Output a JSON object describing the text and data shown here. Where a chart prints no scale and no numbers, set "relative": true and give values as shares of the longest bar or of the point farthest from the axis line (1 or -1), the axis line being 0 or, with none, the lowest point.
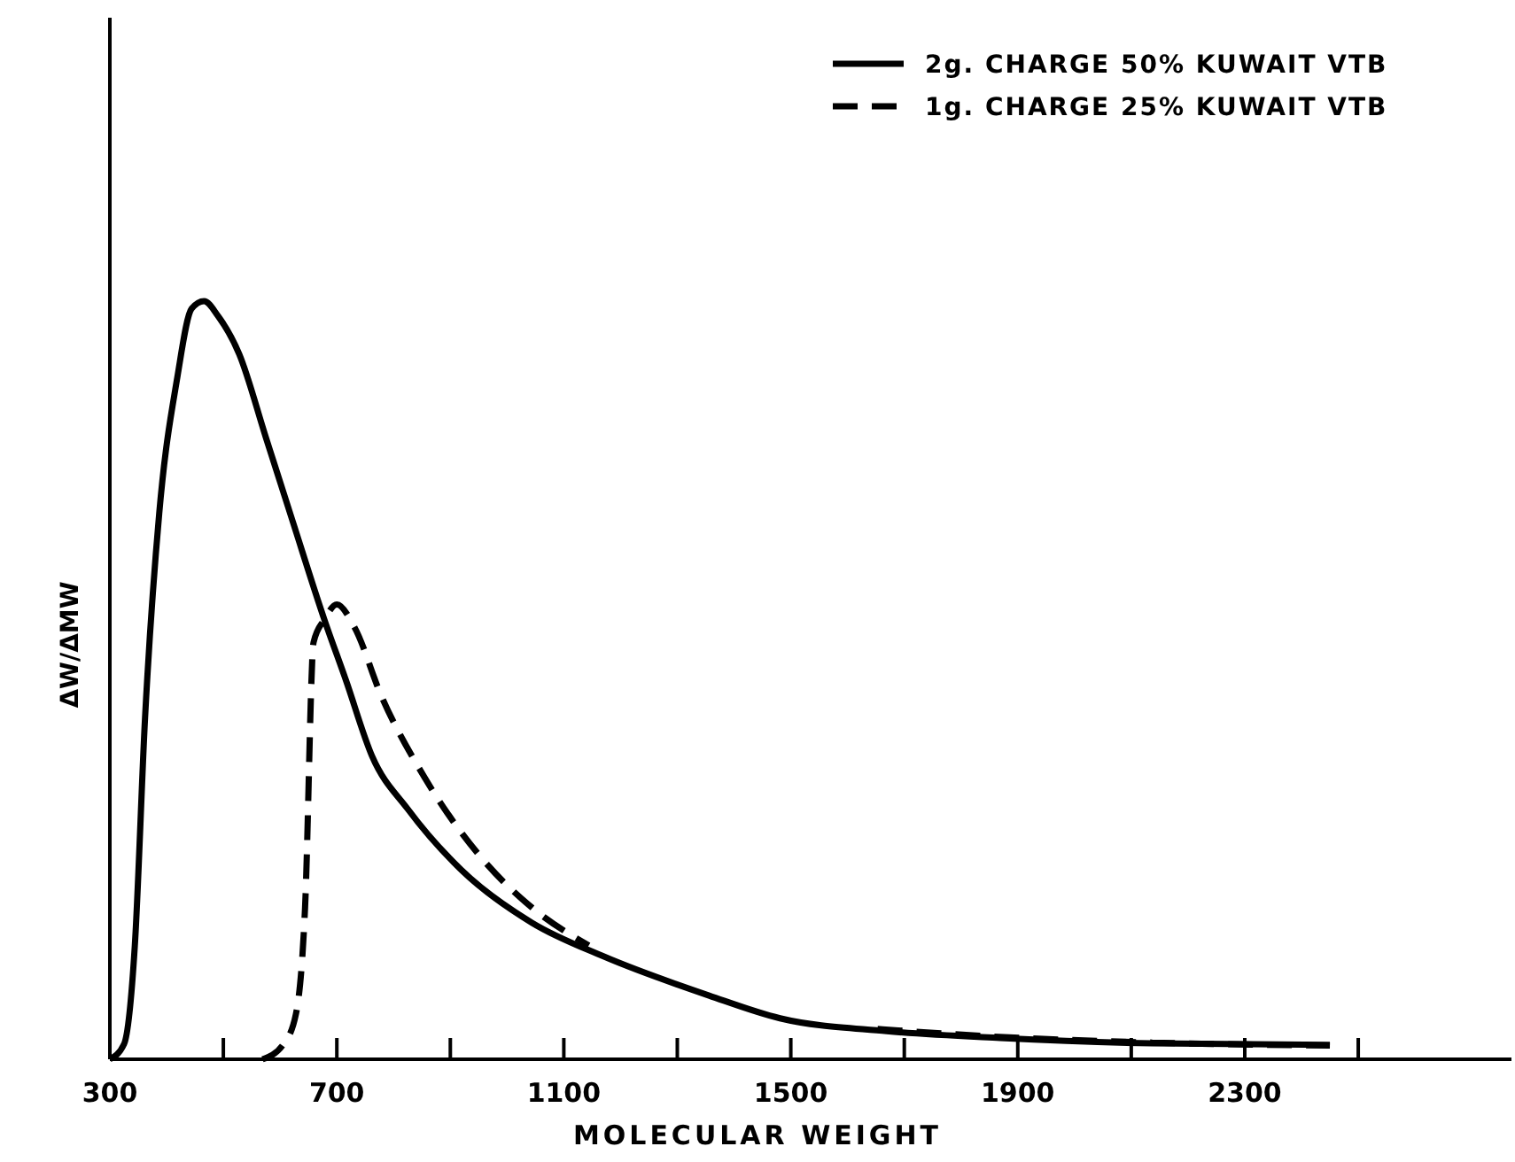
{
  "chart_data": {
    "type": "line",
    "relative": true,
    "xlabel": "MOLECULAR WEIGHT",
    "ylabel": "ΔW/ΔMW",
    "xlim": [
      300,
      2770
    ],
    "xticks": [
      300,
      {
        "value": 500,
        "label": null
      },
      700,
      {
        "value": 900,
        "label": null
      },
      1100,
      {
        "value": 1300,
        "label": null
      },
      1500,
      {
        "value": 1700,
        "label": null
      },
      1900,
      {
        "value": 2100,
        "label": null
      },
      2300,
      {
        "value": 2500,
        "label": null
      }
    ],
    "legend": "top right",
    "series": [
      {
        "name": "2g. CHARGE 50% KUWAIT VTB",
        "color": "#000000",
        "line_style": "solid",
        "x": [
          300,
          325,
          344,
          362,
          387,
          419,
          444,
          466,
          491,
          528,
          575,
          622,
          678,
          716,
          762,
          825,
          919,
          1044,
          1169,
          1356,
          1481,
          1669,
          1869,
          2137,
          2450
        ],
        "values": [
          0,
          0.02,
          0.15,
          0.45,
          0.72,
          0.9,
          0.99,
          1,
          0.98,
          0.93,
          0.82,
          0.71,
          0.58,
          0.5,
          0.4,
          0.33,
          0.25,
          0.18,
          0.136,
          0.084,
          0.054,
          0.037,
          0.028,
          0.021,
          0.019
        ]
      },
      {
        "name": "1g. CHARGE 25% KUWAIT VTB",
        "color": "#000000",
        "line_style": "dashed",
        "x": [
          569,
          606,
          628,
          644,
          659,
          678,
          700,
          731,
          778,
          856,
          950,
          1044,
          1144,
          1400,
          1653,
          1856,
          2137,
          2450
        ],
        "values": [
          0,
          0.02,
          0.06,
          0.2,
          0.55,
          0.58,
          0.6,
          0.57,
          0.48,
          0.37,
          0.27,
          0.2,
          0.15,
          null,
          0.04,
          0.03,
          0.022,
          0.018
        ]
      }
    ]
  }
}
